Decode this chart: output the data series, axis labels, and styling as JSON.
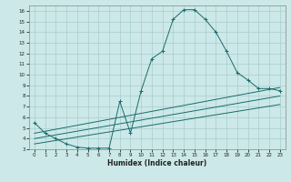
{
  "xlabel": "Humidex (Indice chaleur)",
  "background_color": "#cce8e8",
  "grid_color": "#a8cece",
  "line_color": "#1a6b6b",
  "xlim": [
    -0.5,
    23.5
  ],
  "ylim": [
    3,
    16.5
  ],
  "xticks": [
    0,
    1,
    2,
    3,
    4,
    5,
    6,
    7,
    8,
    9,
    10,
    11,
    12,
    13,
    14,
    15,
    16,
    17,
    18,
    19,
    20,
    21,
    22,
    23
  ],
  "yticks": [
    3,
    4,
    5,
    6,
    7,
    8,
    9,
    10,
    11,
    12,
    13,
    14,
    15,
    16
  ],
  "curve_x": [
    0,
    1,
    2,
    3,
    4,
    5,
    6,
    7,
    8,
    9,
    10,
    11,
    12,
    13,
    14,
    15,
    16,
    17,
    18,
    19,
    20,
    21,
    22,
    23
  ],
  "curve_y": [
    5.5,
    4.5,
    4.0,
    3.5,
    3.2,
    3.1,
    3.1,
    3.1,
    7.5,
    4.5,
    8.5,
    11.5,
    12.2,
    15.2,
    16.1,
    16.1,
    15.2,
    14.0,
    12.2,
    10.2,
    9.5,
    8.7,
    8.7,
    8.5
  ],
  "line1_x": [
    0,
    23
  ],
  "line1_y": [
    4.5,
    8.8
  ],
  "line2_x": [
    0,
    23
  ],
  "line2_y": [
    4.0,
    8.0
  ],
  "line3_x": [
    0,
    23
  ],
  "line3_y": [
    3.5,
    7.2
  ]
}
